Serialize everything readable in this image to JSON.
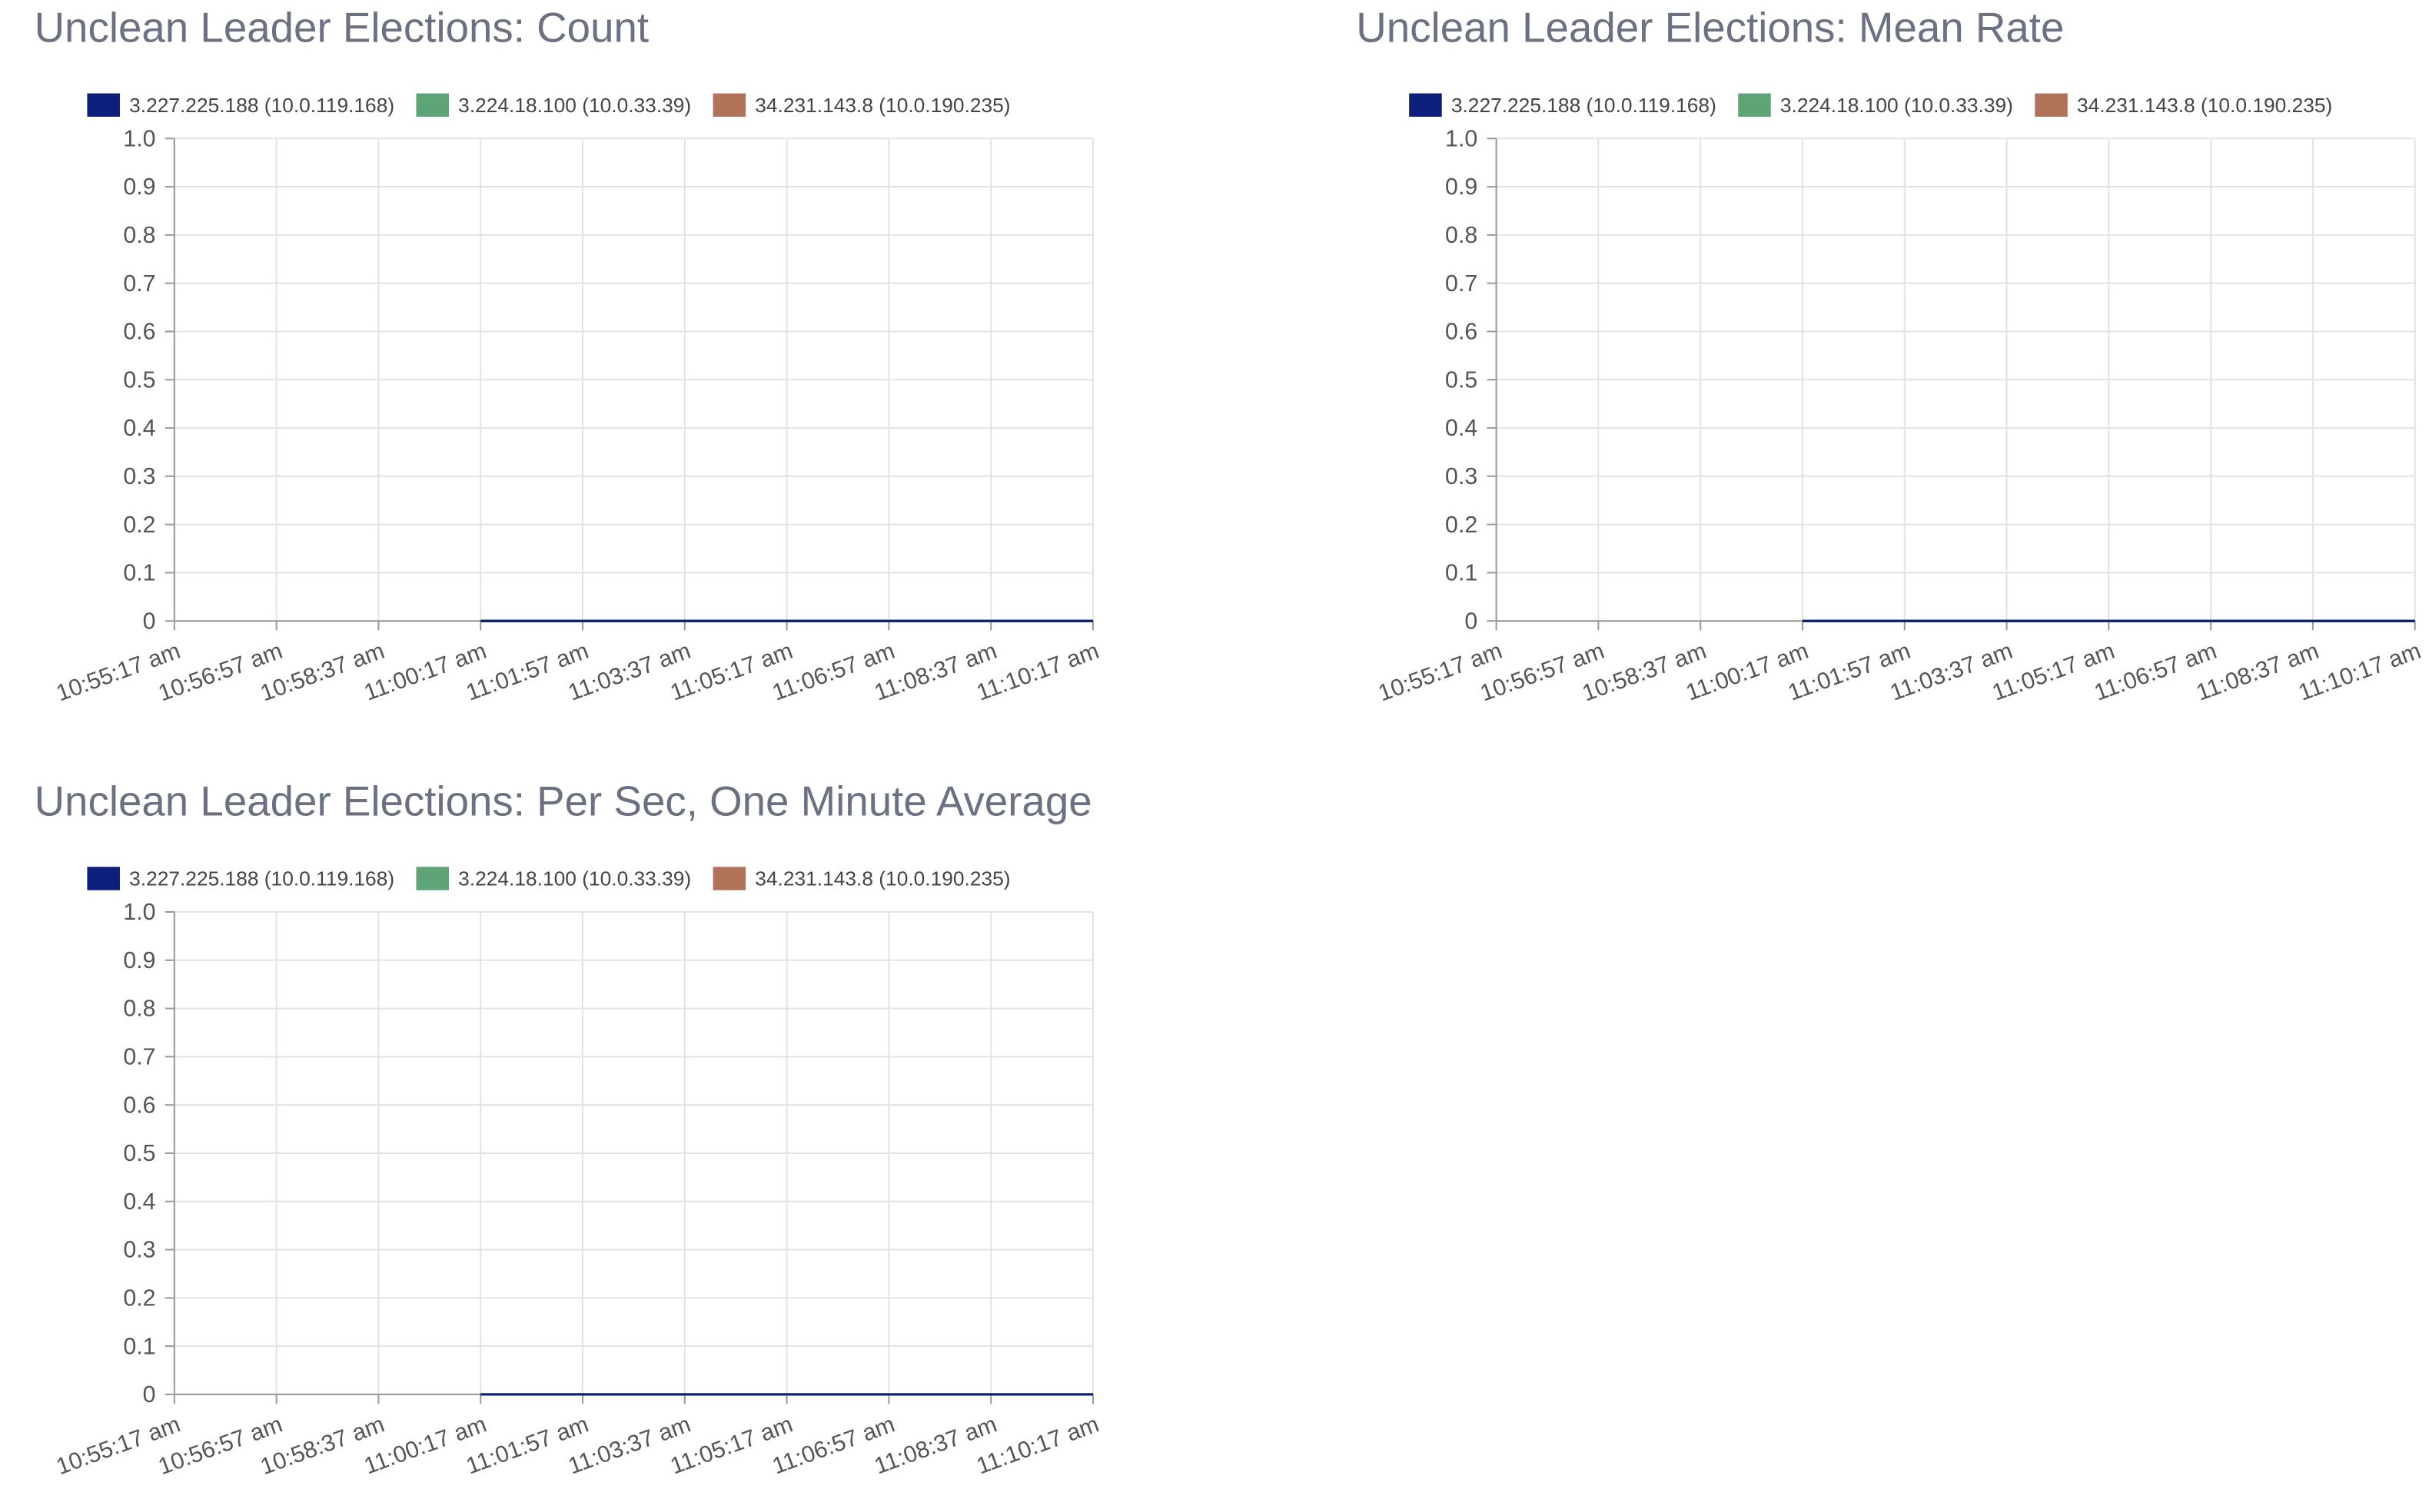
{
  "chart_data": [
    {
      "type": "line",
      "title": "Unclean Leader Elections: Count",
      "categories": [
        "10:55:17 am",
        "10:56:57 am",
        "10:58:37 am",
        "11:00:17 am",
        "11:01:57 am",
        "11:03:37 am",
        "11:05:17 am",
        "11:06:57 am",
        "11:08:37 am",
        "11:10:17 am"
      ],
      "series": [
        {
          "name": "3.227.225.188 (10.0.119.168)",
          "color": "#0c1f7a",
          "values": [
            null,
            null,
            null,
            0,
            0,
            0,
            0,
            0,
            0,
            0
          ]
        },
        {
          "name": "3.224.18.100 (10.0.33.39)",
          "color": "#5fa477",
          "values": [
            null,
            null,
            null,
            0,
            0,
            0,
            0,
            0,
            0,
            0
          ]
        },
        {
          "name": "34.231.143.8 (10.0.190.235)",
          "color": "#b0735a",
          "values": [
            null,
            null,
            null,
            0,
            0,
            0,
            0,
            0,
            0,
            0
          ]
        }
      ],
      "ylim": [
        0,
        1
      ],
      "yticks": [
        0,
        0.1,
        0.2,
        0.3,
        0.4,
        0.5,
        0.6,
        0.7,
        0.8,
        0.9,
        {
          "value": 1,
          "label": "1.0"
        }
      ],
      "grid": true,
      "legend": "top"
    },
    {
      "type": "line",
      "title": "Unclean Leader Elections: Mean Rate",
      "categories": [
        "10:55:17 am",
        "10:56:57 am",
        "10:58:37 am",
        "11:00:17 am",
        "11:01:57 am",
        "11:03:37 am",
        "11:05:17 am",
        "11:06:57 am",
        "11:08:37 am",
        "11:10:17 am"
      ],
      "series": [
        {
          "name": "3.227.225.188 (10.0.119.168)",
          "color": "#0c1f7a",
          "values": [
            null,
            null,
            null,
            0,
            0,
            0,
            0,
            0,
            0,
            0
          ]
        },
        {
          "name": "3.224.18.100 (10.0.33.39)",
          "color": "#5fa477",
          "values": [
            null,
            null,
            null,
            0,
            0,
            0,
            0,
            0,
            0,
            0
          ]
        },
        {
          "name": "34.231.143.8 (10.0.190.235)",
          "color": "#b0735a",
          "values": [
            null,
            null,
            null,
            0,
            0,
            0,
            0,
            0,
            0,
            0
          ]
        }
      ],
      "ylim": [
        0,
        1
      ],
      "yticks": [
        0,
        0.1,
        0.2,
        0.3,
        0.4,
        0.5,
        0.6,
        0.7,
        0.8,
        0.9,
        {
          "value": 1,
          "label": "1.0"
        }
      ],
      "grid": true,
      "legend": "top"
    },
    {
      "type": "line",
      "title": "Unclean Leader Elections: Per Sec, One Minute Average",
      "categories": [
        "10:55:17 am",
        "10:56:57 am",
        "10:58:37 am",
        "11:00:17 am",
        "11:01:57 am",
        "11:03:37 am",
        "11:05:17 am",
        "11:06:57 am",
        "11:08:37 am",
        "11:10:17 am"
      ],
      "series": [
        {
          "name": "3.227.225.188 (10.0.119.168)",
          "color": "#0c1f7a",
          "values": [
            null,
            null,
            null,
            0,
            0,
            0,
            0,
            0,
            0,
            0
          ]
        },
        {
          "name": "3.224.18.100 (10.0.33.39)",
          "color": "#5fa477",
          "values": [
            null,
            null,
            null,
            0,
            0,
            0,
            0,
            0,
            0,
            0
          ]
        },
        {
          "name": "34.231.143.8 (10.0.190.235)",
          "color": "#b0735a",
          "values": [
            null,
            null,
            null,
            0,
            0,
            0,
            0,
            0,
            0,
            0
          ]
        }
      ],
      "ylim": [
        0,
        1
      ],
      "yticks": [
        0,
        0.1,
        0.2,
        0.3,
        0.4,
        0.5,
        0.6,
        0.7,
        0.8,
        0.9,
        {
          "value": 1,
          "label": "1.0"
        }
      ],
      "grid": true,
      "legend": "top"
    }
  ]
}
